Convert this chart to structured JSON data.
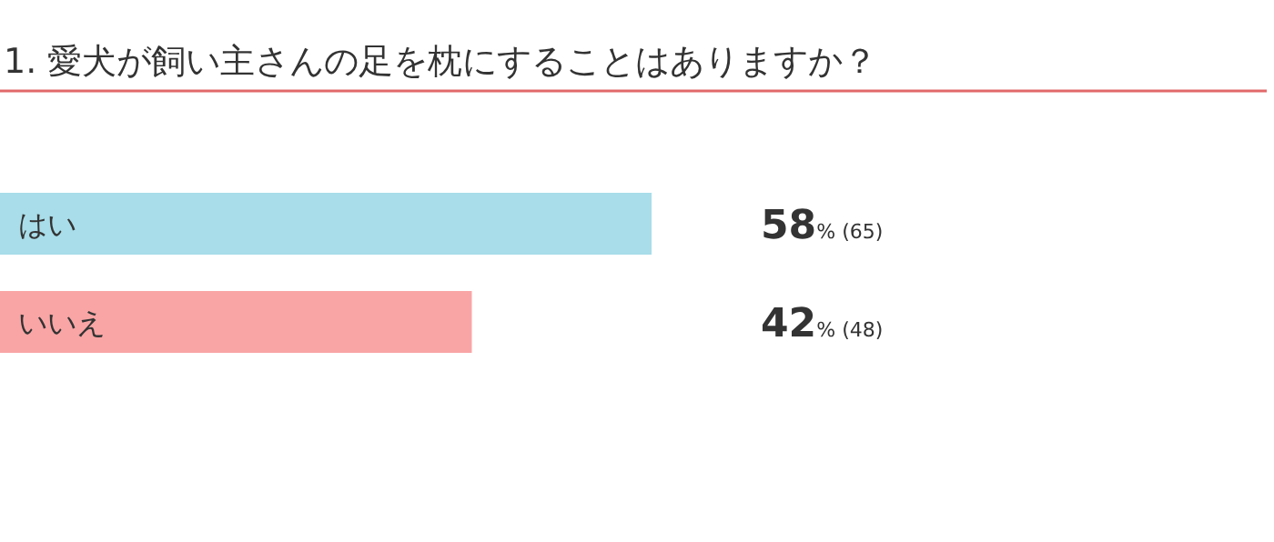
{
  "chart_data": {
    "type": "bar",
    "orientation": "horizontal",
    "title": "1. 愛犬が飼い主さんの足を枕にすることはありますか？",
    "categories": [
      "はい",
      "いいえ"
    ],
    "values": [
      58,
      42
    ],
    "colors": [
      "#a8dde9",
      "#f9a5a5"
    ],
    "value_labels": [
      "58% (65)",
      "42% (48)"
    ]
  }
}
